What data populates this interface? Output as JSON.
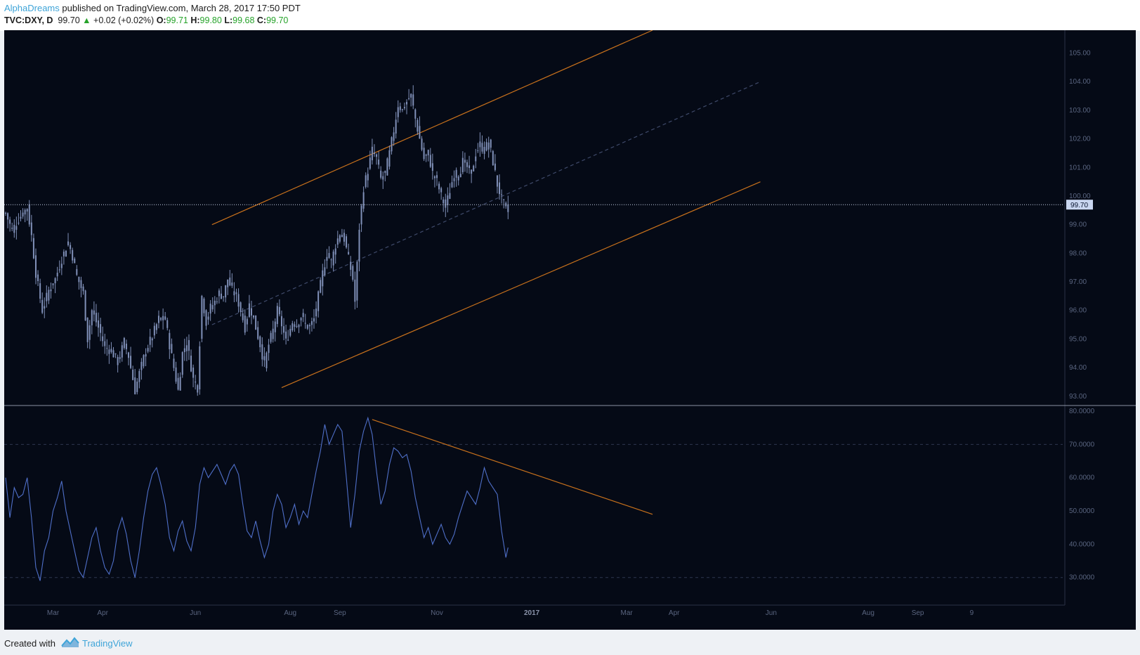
{
  "header": {
    "author": "AlphaDreams",
    "published": "published on TradingView.com, March 28, 2017 17:50 PDT",
    "symbol": "TVC:DXY, D",
    "last": "99.70",
    "change_arrow": "▲",
    "change": "+0.02 (+0.02%)",
    "o_label": "O:",
    "o_value": "99.71",
    "h_label": "H:",
    "h_value": "99.80",
    "l_label": "L:",
    "l_value": "99.68",
    "c_label": "C:",
    "c_value": "99.70"
  },
  "footer": {
    "created_with": "Created with",
    "brand": "TradingView"
  },
  "colors": {
    "background": "#050a16",
    "candles": "#8090b8",
    "trendline": "#c8711c",
    "midline": "#3f4a6a",
    "rsi": "#4f6fc8",
    "accent": "#3ea4d8",
    "up": "#26a32a"
  },
  "chart_data": [
    {
      "type": "candlestick",
      "symbol": "TVC:DXY",
      "interval": "D",
      "ylim": [
        92.7,
        105.8
      ],
      "y_ticks": [
        "105.00",
        "104.00",
        "103.00",
        "102.00",
        "101.00",
        "100.00",
        "99.00",
        "98.00",
        "97.00",
        "96.00",
        "95.00",
        "94.00",
        "93.00"
      ],
      "last_price_label": "99.70",
      "last_price": 99.7,
      "series": [
        {
          "name": "",
          "values": [
            [
              0,
              99.4
            ],
            [
              3,
              98.8
            ],
            [
              6,
              99.2
            ],
            [
              10,
              99.6
            ],
            [
              12,
              98.6
            ],
            [
              14,
              97.3
            ],
            [
              17,
              96.0
            ],
            [
              20,
              96.7
            ],
            [
              23,
              97.1
            ],
            [
              26,
              97.8
            ],
            [
              29,
              98.4
            ],
            [
              31,
              97.9
            ],
            [
              33,
              97.2
            ],
            [
              36,
              96.6
            ],
            [
              38,
              95.0
            ],
            [
              40,
              96.0
            ],
            [
              42,
              95.6
            ],
            [
              44,
              95.2
            ],
            [
              46,
              94.7
            ],
            [
              49,
              94.6
            ],
            [
              52,
              94.2
            ],
            [
              55,
              94.9
            ],
            [
              57,
              94.4
            ],
            [
              60,
              93.2
            ],
            [
              62,
              93.8
            ],
            [
              65,
              94.6
            ],
            [
              68,
              95.1
            ],
            [
              71,
              95.7
            ],
            [
              74,
              95.7
            ],
            [
              76,
              94.8
            ],
            [
              78,
              94.0
            ],
            [
              80,
              93.2
            ],
            [
              82,
              94.5
            ],
            [
              84,
              94.9
            ],
            [
              87,
              93.6
            ],
            [
              89,
              93.3
            ],
            [
              91,
              96.5
            ],
            [
              93,
              95.6
            ],
            [
              95,
              96.1
            ],
            [
              97,
              96.3
            ],
            [
              99,
              96.6
            ],
            [
              101,
              96.5
            ],
            [
              103,
              97.1
            ],
            [
              105,
              96.7
            ],
            [
              107,
              96.5
            ],
            [
              109,
              96.0
            ],
            [
              111,
              95.4
            ],
            [
              113,
              96.2
            ],
            [
              115,
              95.7
            ],
            [
              118,
              94.8
            ],
            [
              120,
              94.1
            ],
            [
              122,
              94.8
            ],
            [
              124,
              95.3
            ],
            [
              126,
              96.0
            ],
            [
              128,
              95.5
            ],
            [
              130,
              94.9
            ],
            [
              133,
              95.6
            ],
            [
              135,
              95.5
            ],
            [
              137,
              95.8
            ],
            [
              139,
              95.5
            ],
            [
              141,
              95.4
            ],
            [
              143,
              95.7
            ],
            [
              145,
              96.5
            ],
            [
              147,
              97.3
            ],
            [
              149,
              98.0
            ],
            [
              151,
              97.7
            ],
            [
              153,
              98.3
            ],
            [
              155,
              98.7
            ],
            [
              157,
              98.5
            ],
            [
              159,
              97.8
            ],
            [
              161,
              97.1
            ],
            [
              162,
              96.3
            ],
            [
              164,
              98.9
            ],
            [
              166,
              100.3
            ],
            [
              168,
              100.9
            ],
            [
              170,
              101.6
            ],
            [
              172,
              101.3
            ],
            [
              174,
              100.6
            ],
            [
              176,
              100.8
            ],
            [
              178,
              101.5
            ],
            [
              180,
              102.3
            ],
            [
              182,
              103.2
            ],
            [
              184,
              103.0
            ],
            [
              186,
              103.3
            ],
            [
              188,
              103.5
            ],
            [
              190,
              102.7
            ],
            [
              192,
              102.0
            ],
            [
              194,
              101.3
            ],
            [
              196,
              101.5
            ],
            [
              198,
              100.8
            ],
            [
              200,
              100.5
            ],
            [
              202,
              100.0
            ],
            [
              204,
              99.6
            ],
            [
              206,
              100.2
            ],
            [
              208,
              100.8
            ],
            [
              210,
              100.7
            ],
            [
              212,
              101.2
            ],
            [
              214,
              101.0
            ],
            [
              216,
              100.8
            ],
            [
              218,
              101.5
            ],
            [
              220,
              101.8
            ],
            [
              222,
              101.6
            ],
            [
              224,
              101.9
            ],
            [
              226,
              101.2
            ],
            [
              228,
              100.4
            ],
            [
              230,
              99.9
            ],
            [
              232,
              99.5
            ],
            [
              233,
              99.7
            ]
          ]
        }
      ]
    },
    {
      "type": "line",
      "indicator": "RSI",
      "ylim": [
        25.5,
        81.5
      ],
      "y_ticks": [
        "80.0000",
        "70.0000",
        "60.0000",
        "50.0000",
        "40.0000",
        "30.0000"
      ],
      "series": [
        {
          "name": "",
          "values": [
            [
              0,
              60
            ],
            [
              2,
              48
            ],
            [
              4,
              57
            ],
            [
              6,
              54
            ],
            [
              8,
              55
            ],
            [
              10,
              60
            ],
            [
              12,
              48
            ],
            [
              14,
              33
            ],
            [
              16,
              29
            ],
            [
              18,
              38
            ],
            [
              20,
              42
            ],
            [
              22,
              50
            ],
            [
              24,
              54
            ],
            [
              26,
              59
            ],
            [
              28,
              50
            ],
            [
              30,
              44
            ],
            [
              32,
              38
            ],
            [
              34,
              32
            ],
            [
              36,
              30
            ],
            [
              38,
              36
            ],
            [
              40,
              42
            ],
            [
              42,
              45
            ],
            [
              44,
              38
            ],
            [
              46,
              33
            ],
            [
              48,
              31
            ],
            [
              50,
              35
            ],
            [
              52,
              44
            ],
            [
              54,
              48
            ],
            [
              56,
              43
            ],
            [
              58,
              35
            ],
            [
              60,
              30
            ],
            [
              62,
              38
            ],
            [
              64,
              48
            ],
            [
              66,
              56
            ],
            [
              68,
              61
            ],
            [
              70,
              63
            ],
            [
              72,
              58
            ],
            [
              74,
              52
            ],
            [
              76,
              42
            ],
            [
              78,
              38
            ],
            [
              80,
              44
            ],
            [
              82,
              47
            ],
            [
              84,
              41
            ],
            [
              86,
              38
            ],
            [
              88,
              45
            ],
            [
              90,
              58
            ],
            [
              92,
              63
            ],
            [
              94,
              60
            ],
            [
              96,
              62
            ],
            [
              98,
              64
            ],
            [
              100,
              61
            ],
            [
              102,
              58
            ],
            [
              104,
              62
            ],
            [
              106,
              64
            ],
            [
              108,
              61
            ],
            [
              110,
              52
            ],
            [
              112,
              44
            ],
            [
              114,
              42
            ],
            [
              116,
              47
            ],
            [
              118,
              41
            ],
            [
              120,
              36
            ],
            [
              122,
              40
            ],
            [
              124,
              50
            ],
            [
              126,
              55
            ],
            [
              128,
              52
            ],
            [
              130,
              45
            ],
            [
              132,
              48
            ],
            [
              134,
              52
            ],
            [
              136,
              46
            ],
            [
              138,
              50
            ],
            [
              140,
              48
            ],
            [
              142,
              55
            ],
            [
              144,
              62
            ],
            [
              146,
              68
            ],
            [
              148,
              76
            ],
            [
              150,
              70
            ],
            [
              152,
              73
            ],
            [
              154,
              76
            ],
            [
              156,
              74
            ],
            [
              158,
              60
            ],
            [
              160,
              45
            ],
            [
              162,
              55
            ],
            [
              164,
              68
            ],
            [
              166,
              74
            ],
            [
              168,
              78
            ],
            [
              170,
              73
            ],
            [
              172,
              62
            ],
            [
              174,
              52
            ],
            [
              176,
              56
            ],
            [
              178,
              64
            ],
            [
              180,
              69
            ],
            [
              182,
              68
            ],
            [
              184,
              66
            ],
            [
              186,
              67
            ],
            [
              188,
              62
            ],
            [
              190,
              54
            ],
            [
              192,
              48
            ],
            [
              194,
              42
            ],
            [
              196,
              45
            ],
            [
              198,
              40
            ],
            [
              200,
              43
            ],
            [
              202,
              46
            ],
            [
              204,
              42
            ],
            [
              206,
              40
            ],
            [
              208,
              43
            ],
            [
              210,
              48
            ],
            [
              212,
              52
            ],
            [
              214,
              56
            ],
            [
              216,
              54
            ],
            [
              218,
              52
            ],
            [
              220,
              57
            ],
            [
              222,
              63
            ],
            [
              224,
              59
            ],
            [
              226,
              57
            ],
            [
              228,
              55
            ],
            [
              230,
              44
            ],
            [
              232,
              36
            ],
            [
              233,
              39
            ]
          ]
        }
      ]
    }
  ],
  "drawings": {
    "channel_top": [
      [
        95.7,
        99.0
      ],
      [
        300,
        105.8
      ]
    ],
    "channel_mid": [
      [
        95.7,
        95.5
      ],
      [
        350,
        104.0
      ]
    ],
    "channel_bottom": [
      [
        128,
        93.3
      ],
      [
        350,
        100.5
      ]
    ],
    "rsi_trend": [
      [
        170,
        77.5
      ],
      [
        300,
        49
      ]
    ]
  },
  "x_axis": {
    "labels": [
      {
        "text": "Mar",
        "i": 22
      },
      {
        "text": "Apr",
        "i": 45
      },
      {
        "text": "Jun",
        "i": 88
      },
      {
        "text": "Aug",
        "i": 132
      },
      {
        "text": "Sep",
        "i": 155
      },
      {
        "text": "Nov",
        "i": 200
      },
      {
        "text": "2017",
        "i": 244,
        "bold": true
      },
      {
        "text": "Mar",
        "i": 288
      },
      {
        "text": "Apr",
        "i": 310
      },
      {
        "text": "Jun",
        "i": 355
      },
      {
        "text": "Aug",
        "i": 400
      },
      {
        "text": "Sep",
        "i": 423
      },
      {
        "text": "9",
        "i": 448
      }
    ]
  }
}
